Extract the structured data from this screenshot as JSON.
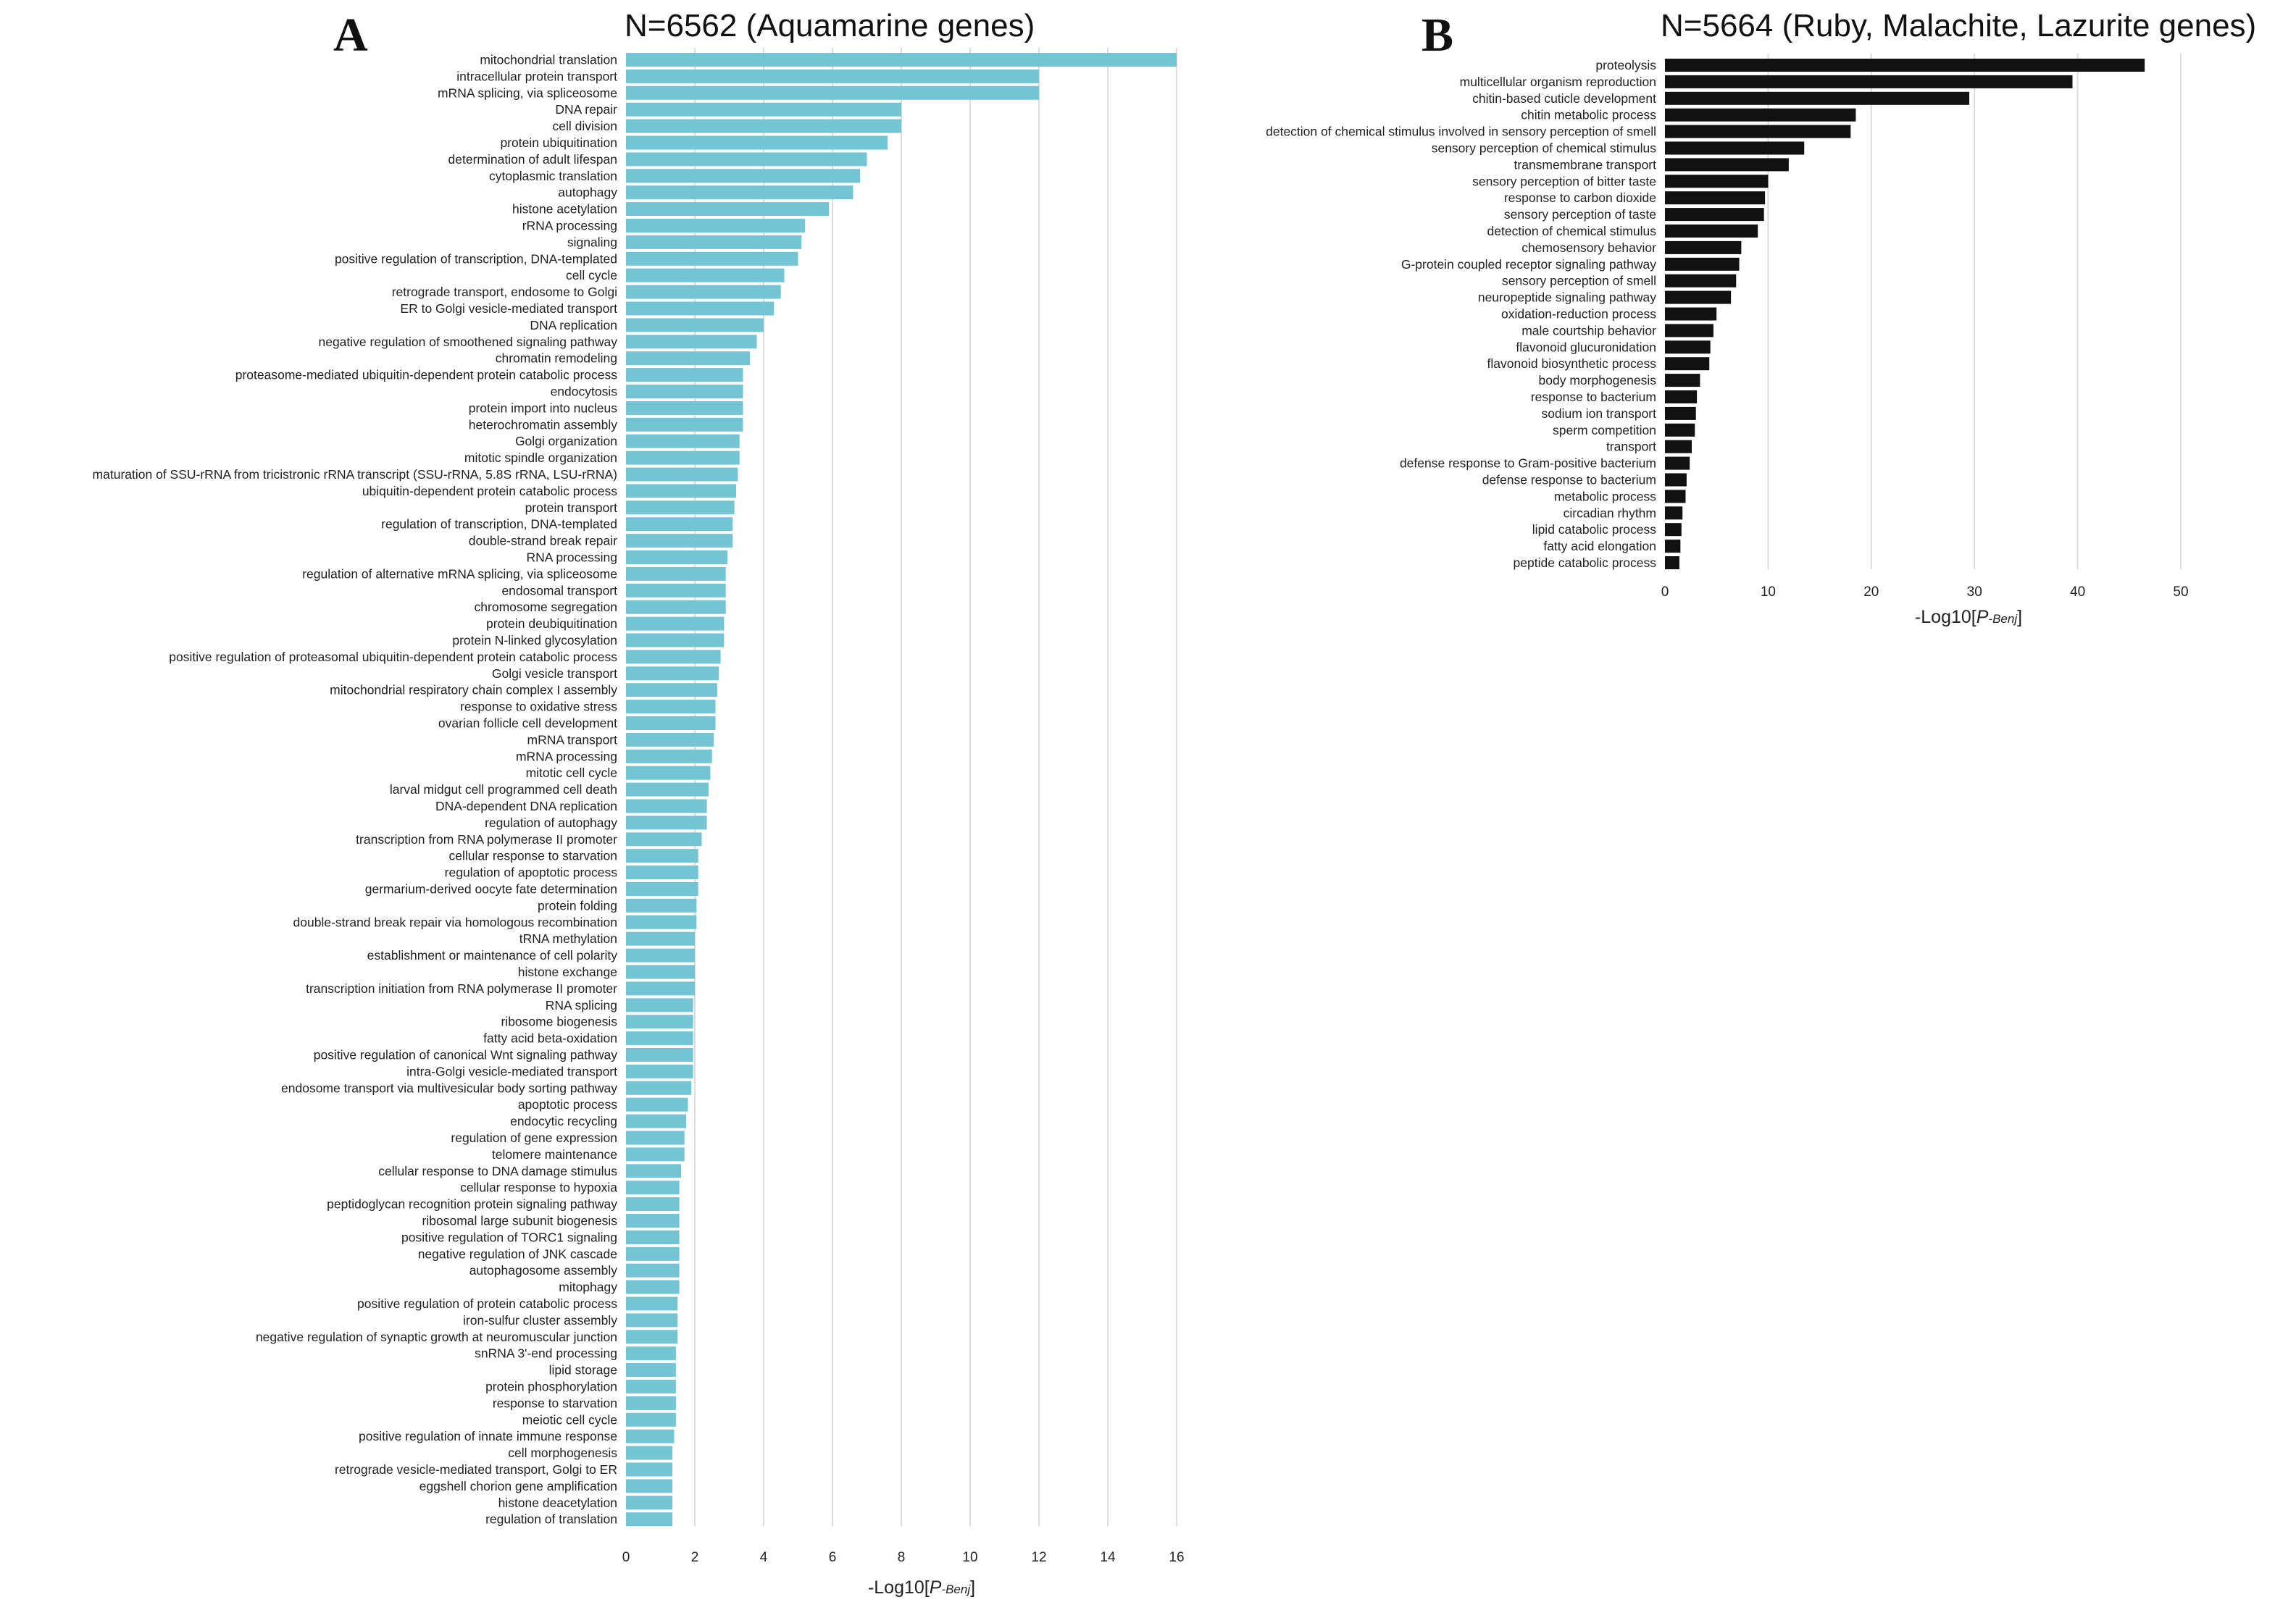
{
  "chart_data": [
    {
      "type": "bar",
      "orientation": "horizontal",
      "panel": "A",
      "title": "N=6562 (Aquamarine genes)",
      "xlabel_prefix": "-Log10[",
      "xlabel_main": "P",
      "xlabel_sub": "-Benj",
      "xlabel_suffix": "]",
      "xlim": [
        0,
        16
      ],
      "xticks": [
        0,
        2,
        4,
        6,
        8,
        10,
        12,
        14,
        16
      ],
      "grid": true,
      "bar_color": "#74c5d4",
      "categories": [
        "mitochondrial translation",
        "intracellular protein transport",
        "mRNA splicing, via spliceosome",
        "DNA repair",
        "cell division",
        "protein ubiquitination",
        "determination of adult lifespan",
        "cytoplasmic translation",
        "autophagy",
        "histone acetylation",
        "rRNA processing",
        "signaling",
        "positive regulation of transcription, DNA-templated",
        "cell cycle",
        "retrograde transport, endosome to Golgi",
        "ER to Golgi vesicle-mediated transport",
        "DNA replication",
        "negative regulation of smoothened signaling pathway",
        "chromatin remodeling",
        "proteasome-mediated ubiquitin-dependent protein catabolic process",
        "endocytosis",
        "protein import into nucleus",
        "heterochromatin assembly",
        "Golgi organization",
        "mitotic spindle organization",
        "maturation of SSU-rRNA from tricistronic rRNA transcript (SSU-rRNA, 5.8S rRNA, LSU-rRNA)",
        "ubiquitin-dependent protein catabolic process",
        "protein transport",
        "regulation of transcription, DNA-templated",
        "double-strand break repair",
        "RNA processing",
        "regulation of alternative mRNA splicing, via spliceosome",
        "endosomal transport",
        "chromosome segregation",
        "protein deubiquitination",
        "protein N-linked glycosylation",
        "positive regulation of proteasomal ubiquitin-dependent protein catabolic process",
        "Golgi vesicle transport",
        "mitochondrial respiratory chain complex I assembly",
        "response to oxidative stress",
        "ovarian follicle cell development",
        "mRNA transport",
        "mRNA processing",
        "mitotic cell cycle",
        "larval midgut cell programmed cell death",
        "DNA-dependent DNA replication",
        "regulation of autophagy",
        "transcription from RNA polymerase II promoter",
        "cellular response to starvation",
        "regulation of apoptotic process",
        "germarium-derived oocyte fate determination",
        "protein folding",
        "double-strand break repair via homologous recombination",
        "tRNA methylation",
        "establishment or maintenance of cell polarity",
        "histone exchange",
        "transcription initiation from RNA polymerase II promoter",
        "RNA splicing",
        "ribosome biogenesis",
        "fatty acid beta-oxidation",
        "positive regulation of canonical Wnt signaling pathway",
        "intra-Golgi vesicle-mediated transport",
        "endosome transport via multivesicular body sorting pathway",
        "apoptotic process",
        "endocytic recycling",
        "regulation of gene expression",
        "telomere maintenance",
        "cellular response to DNA damage stimulus",
        "cellular response to hypoxia",
        "peptidoglycan recognition protein signaling pathway",
        "ribosomal large subunit biogenesis",
        "positive regulation of TORC1 signaling",
        "negative regulation of JNK cascade",
        "autophagosome assembly",
        "mitophagy",
        "positive regulation of protein catabolic process",
        "iron-sulfur cluster assembly",
        "negative regulation of synaptic growth at neuromuscular junction",
        "snRNA 3'-end processing",
        "lipid storage",
        "protein phosphorylation",
        "response to starvation",
        "meiotic cell cycle",
        "positive regulation of innate immune response",
        "cell morphogenesis",
        "retrograde vesicle-mediated transport, Golgi to ER",
        "eggshell chorion gene amplification",
        "histone deacetylation",
        "regulation of translation"
      ],
      "values": [
        16.0,
        12.0,
        12.0,
        8.0,
        8.0,
        7.6,
        7.0,
        6.8,
        6.6,
        5.9,
        5.2,
        5.1,
        5.0,
        4.6,
        4.5,
        4.3,
        4.0,
        3.8,
        3.6,
        3.4,
        3.4,
        3.4,
        3.4,
        3.3,
        3.3,
        3.25,
        3.2,
        3.15,
        3.1,
        3.1,
        2.95,
        2.9,
        2.9,
        2.9,
        2.85,
        2.85,
        2.75,
        2.7,
        2.65,
        2.6,
        2.6,
        2.55,
        2.5,
        2.45,
        2.4,
        2.35,
        2.35,
        2.2,
        2.1,
        2.1,
        2.1,
        2.05,
        2.05,
        2.0,
        2.0,
        2.0,
        2.0,
        1.95,
        1.95,
        1.95,
        1.95,
        1.95,
        1.9,
        1.8,
        1.75,
        1.7,
        1.7,
        1.6,
        1.55,
        1.55,
        1.55,
        1.55,
        1.55,
        1.55,
        1.55,
        1.5,
        1.5,
        1.5,
        1.45,
        1.45,
        1.45,
        1.45,
        1.45,
        1.4,
        1.35,
        1.35,
        1.35,
        1.35,
        1.35
      ]
    },
    {
      "type": "bar",
      "orientation": "horizontal",
      "panel": "B",
      "title": "N=5664 (Ruby, Malachite, Lazurite genes)",
      "xlabel_prefix": "-Log10[",
      "xlabel_main": "P",
      "xlabel_sub": "-Benj",
      "xlabel_suffix": "]",
      "xlim": [
        0,
        50
      ],
      "xticks": [
        0,
        10,
        20,
        30,
        40,
        50
      ],
      "grid": true,
      "bar_color": "#111111",
      "categories": [
        "proteolysis",
        "multicellular organism reproduction",
        "chitin-based cuticle development",
        "chitin metabolic process",
        "detection of chemical stimulus involved in sensory perception of smell",
        "sensory perception of chemical stimulus",
        "transmembrane transport",
        "sensory perception of bitter taste",
        "response to carbon dioxide",
        "sensory perception of taste",
        "detection of chemical stimulus",
        "chemosensory behavior",
        "G-protein coupled receptor signaling pathway",
        "sensory perception of smell",
        "neuropeptide signaling pathway",
        "oxidation-reduction process",
        "male courtship behavior",
        "flavonoid glucuronidation",
        "flavonoid biosynthetic process",
        "body morphogenesis",
        "response to bacterium",
        "sodium ion transport",
        "sperm competition",
        "transport",
        "defense response to Gram-positive bacterium",
        "defense response to bacterium",
        "metabolic process",
        "circadian rhythm",
        "lipid catabolic process",
        "fatty acid elongation",
        "peptide catabolic process"
      ],
      "values": [
        46.5,
        39.5,
        29.5,
        18.5,
        18.0,
        13.5,
        12.0,
        10.0,
        9.7,
        9.6,
        9.0,
        7.4,
        7.2,
        6.9,
        6.4,
        5.0,
        4.7,
        4.4,
        4.3,
        3.4,
        3.1,
        3.0,
        2.9,
        2.6,
        2.4,
        2.1,
        2.0,
        1.7,
        1.6,
        1.5,
        1.4
      ]
    }
  ]
}
